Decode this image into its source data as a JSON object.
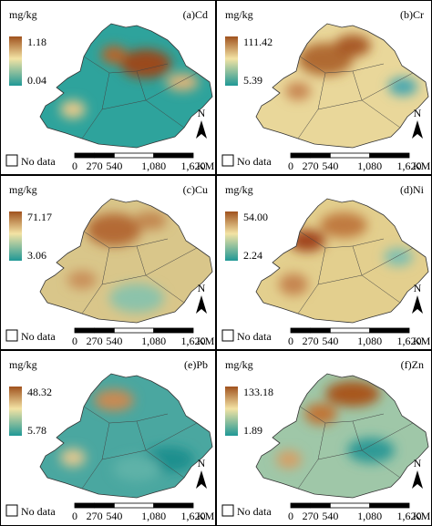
{
  "figure": {
    "unit": "mg/kg",
    "no_data": "No data",
    "north": "N",
    "scale_bar": {
      "ticks": [
        "0",
        "270",
        "540",
        "1,080",
        "1,620"
      ],
      "unit": "KM"
    },
    "panels": [
      {
        "label": "(a)Cd",
        "max": "1.18",
        "min": "0.04"
      },
      {
        "label": "(b)Cr",
        "max": "111.42",
        "min": "5.39"
      },
      {
        "label": "(c)Cu",
        "max": "71.17",
        "min": "3.06"
      },
      {
        "label": "(d)Ni",
        "max": "54.00",
        "min": "2.24"
      },
      {
        "label": "(e)Pb",
        "max": "48.32",
        "min": "5.78"
      },
      {
        "label": "(f)Zn",
        "max": "133.18",
        "min": "1.89"
      }
    ]
  }
}
